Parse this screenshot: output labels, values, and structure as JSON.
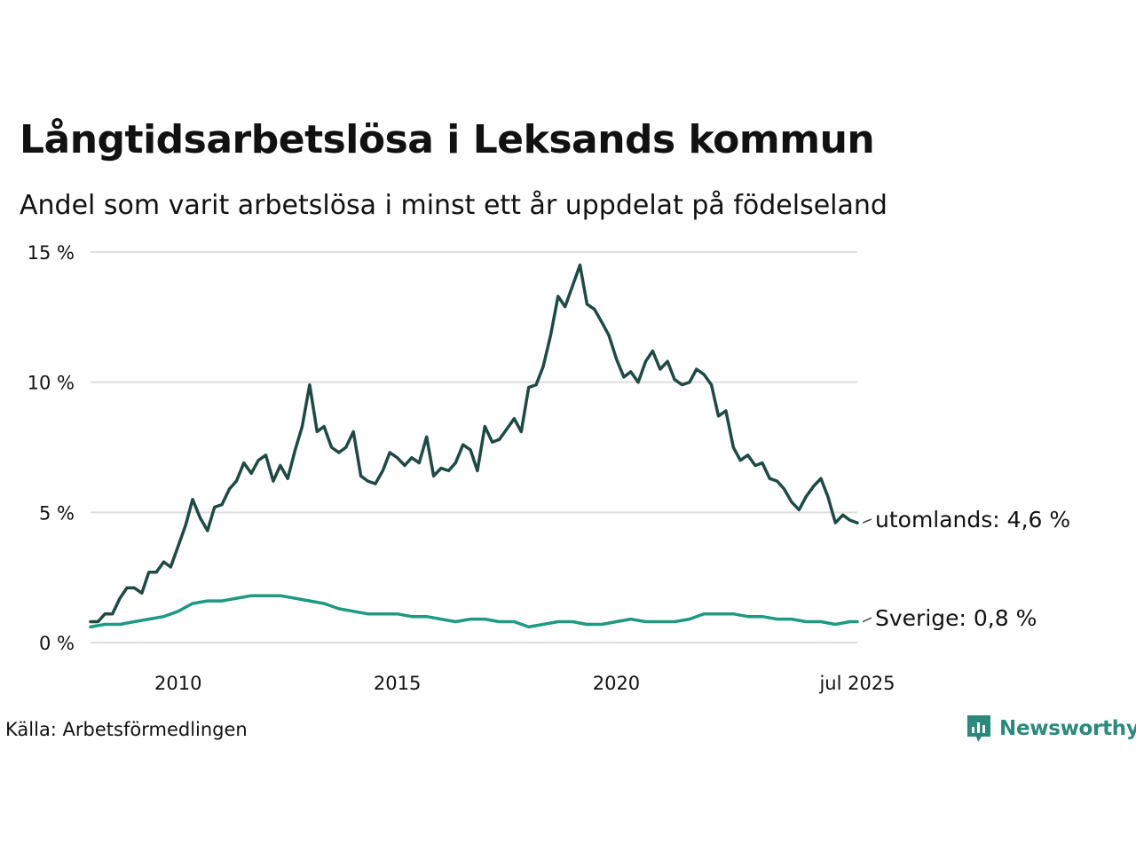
{
  "title": "Långtidsarbetslösa i Leksands kommun",
  "subtitle": "Andel som varit arbetslösa i minst ett år uppdelat på födelseland",
  "source": "Källa: Arbetsförmedlingen",
  "brand": "Newsworthy",
  "colors": {
    "utomlands": "#1f4a44",
    "sverige": "#1e9984",
    "grid": "#dddddd",
    "brand": "#2b8a7b"
  },
  "chart_data": {
    "type": "line",
    "title": "Långtidsarbetslösa i Leksands kommun",
    "subtitle": "Andel som varit arbetslösa i minst ett år uppdelat på födelseland",
    "ylim": [
      0,
      15
    ],
    "xlim": [
      2008.0,
      2025.5
    ],
    "y_ticks": [
      {
        "value": 0,
        "label": "0 %"
      },
      {
        "value": 5,
        "label": "5 %"
      },
      {
        "value": 10,
        "label": "10 %"
      },
      {
        "value": 15,
        "label": "15 %"
      }
    ],
    "x_ticks": [
      {
        "value": 2010,
        "label": "2010"
      },
      {
        "value": 2015,
        "label": "2015"
      },
      {
        "value": 2020,
        "label": "2020"
      },
      {
        "value": 2025.5,
        "label": "jul 2025"
      }
    ],
    "grid": true,
    "legend": "end-labels",
    "series": [
      {
        "name": "utomlands",
        "end_label": "utomlands: 4,6 %",
        "color": "#1f4a44",
        "points": [
          [
            2008.0,
            0.8
          ],
          [
            2008.17,
            0.8
          ],
          [
            2008.33,
            1.1
          ],
          [
            2008.5,
            1.1
          ],
          [
            2008.67,
            1.7
          ],
          [
            2008.83,
            2.1
          ],
          [
            2009.0,
            2.1
          ],
          [
            2009.17,
            1.9
          ],
          [
            2009.33,
            2.7
          ],
          [
            2009.5,
            2.7
          ],
          [
            2009.67,
            3.1
          ],
          [
            2009.83,
            2.9
          ],
          [
            2010.0,
            3.7
          ],
          [
            2010.17,
            4.5
          ],
          [
            2010.33,
            5.5
          ],
          [
            2010.5,
            4.8
          ],
          [
            2010.67,
            4.3
          ],
          [
            2010.83,
            5.2
          ],
          [
            2011.0,
            5.3
          ],
          [
            2011.17,
            5.9
          ],
          [
            2011.33,
            6.2
          ],
          [
            2011.5,
            6.9
          ],
          [
            2011.67,
            6.5
          ],
          [
            2011.83,
            7.0
          ],
          [
            2012.0,
            7.2
          ],
          [
            2012.17,
            6.2
          ],
          [
            2012.33,
            6.8
          ],
          [
            2012.5,
            6.3
          ],
          [
            2012.67,
            7.4
          ],
          [
            2012.83,
            8.3
          ],
          [
            2013.0,
            9.9
          ],
          [
            2013.17,
            8.1
          ],
          [
            2013.33,
            8.3
          ],
          [
            2013.5,
            7.5
          ],
          [
            2013.67,
            7.3
          ],
          [
            2013.83,
            7.5
          ],
          [
            2014.0,
            8.1
          ],
          [
            2014.17,
            6.4
          ],
          [
            2014.33,
            6.2
          ],
          [
            2014.5,
            6.1
          ],
          [
            2014.67,
            6.6
          ],
          [
            2014.83,
            7.3
          ],
          [
            2015.0,
            7.1
          ],
          [
            2015.17,
            6.8
          ],
          [
            2015.33,
            7.1
          ],
          [
            2015.5,
            6.9
          ],
          [
            2015.67,
            7.9
          ],
          [
            2015.83,
            6.4
          ],
          [
            2016.0,
            6.7
          ],
          [
            2016.17,
            6.6
          ],
          [
            2016.33,
            6.9
          ],
          [
            2016.5,
            7.6
          ],
          [
            2016.67,
            7.4
          ],
          [
            2016.83,
            6.6
          ],
          [
            2017.0,
            8.3
          ],
          [
            2017.17,
            7.7
          ],
          [
            2017.33,
            7.8
          ],
          [
            2017.5,
            8.2
          ],
          [
            2017.67,
            8.6
          ],
          [
            2017.83,
            8.1
          ],
          [
            2018.0,
            9.8
          ],
          [
            2018.17,
            9.9
          ],
          [
            2018.33,
            10.6
          ],
          [
            2018.5,
            11.8
          ],
          [
            2018.67,
            13.3
          ],
          [
            2018.83,
            12.9
          ],
          [
            2019.0,
            13.7
          ],
          [
            2019.17,
            14.5
          ],
          [
            2019.33,
            13.0
          ],
          [
            2019.5,
            12.8
          ],
          [
            2019.67,
            12.3
          ],
          [
            2019.83,
            11.8
          ],
          [
            2020.0,
            10.9
          ],
          [
            2020.17,
            10.2
          ],
          [
            2020.33,
            10.4
          ],
          [
            2020.5,
            10.0
          ],
          [
            2020.67,
            10.8
          ],
          [
            2020.83,
            11.2
          ],
          [
            2021.0,
            10.5
          ],
          [
            2021.17,
            10.8
          ],
          [
            2021.33,
            10.1
          ],
          [
            2021.5,
            9.9
          ],
          [
            2021.67,
            10.0
          ],
          [
            2021.83,
            10.5
          ],
          [
            2022.0,
            10.3
          ],
          [
            2022.17,
            9.9
          ],
          [
            2022.33,
            8.7
          ],
          [
            2022.5,
            8.9
          ],
          [
            2022.67,
            7.5
          ],
          [
            2022.83,
            7.0
          ],
          [
            2023.0,
            7.2
          ],
          [
            2023.17,
            6.8
          ],
          [
            2023.33,
            6.9
          ],
          [
            2023.5,
            6.3
          ],
          [
            2023.67,
            6.2
          ],
          [
            2023.83,
            5.9
          ],
          [
            2024.0,
            5.4
          ],
          [
            2024.17,
            5.1
          ],
          [
            2024.33,
            5.6
          ],
          [
            2024.5,
            6.0
          ],
          [
            2024.67,
            6.3
          ],
          [
            2024.83,
            5.6
          ],
          [
            2025.0,
            4.6
          ],
          [
            2025.17,
            4.9
          ],
          [
            2025.33,
            4.7
          ],
          [
            2025.5,
            4.6
          ]
        ]
      },
      {
        "name": "Sverige",
        "end_label": "Sverige: 0,8 %",
        "color": "#1e9984",
        "points": [
          [
            2008.0,
            0.6
          ],
          [
            2008.33,
            0.7
          ],
          [
            2008.67,
            0.7
          ],
          [
            2009.0,
            0.8
          ],
          [
            2009.33,
            0.9
          ],
          [
            2009.67,
            1.0
          ],
          [
            2010.0,
            1.2
          ],
          [
            2010.33,
            1.5
          ],
          [
            2010.67,
            1.6
          ],
          [
            2011.0,
            1.6
          ],
          [
            2011.33,
            1.7
          ],
          [
            2011.67,
            1.8
          ],
          [
            2012.0,
            1.8
          ],
          [
            2012.33,
            1.8
          ],
          [
            2012.67,
            1.7
          ],
          [
            2013.0,
            1.6
          ],
          [
            2013.33,
            1.5
          ],
          [
            2013.67,
            1.3
          ],
          [
            2014.0,
            1.2
          ],
          [
            2014.33,
            1.1
          ],
          [
            2014.67,
            1.1
          ],
          [
            2015.0,
            1.1
          ],
          [
            2015.33,
            1.0
          ],
          [
            2015.67,
            1.0
          ],
          [
            2016.0,
            0.9
          ],
          [
            2016.33,
            0.8
          ],
          [
            2016.67,
            0.9
          ],
          [
            2017.0,
            0.9
          ],
          [
            2017.33,
            0.8
          ],
          [
            2017.67,
            0.8
          ],
          [
            2018.0,
            0.6
          ],
          [
            2018.33,
            0.7
          ],
          [
            2018.67,
            0.8
          ],
          [
            2019.0,
            0.8
          ],
          [
            2019.33,
            0.7
          ],
          [
            2019.67,
            0.7
          ],
          [
            2020.0,
            0.8
          ],
          [
            2020.33,
            0.9
          ],
          [
            2020.67,
            0.8
          ],
          [
            2021.0,
            0.8
          ],
          [
            2021.33,
            0.8
          ],
          [
            2021.67,
            0.9
          ],
          [
            2022.0,
            1.1
          ],
          [
            2022.33,
            1.1
          ],
          [
            2022.67,
            1.1
          ],
          [
            2023.0,
            1.0
          ],
          [
            2023.33,
            1.0
          ],
          [
            2023.67,
            0.9
          ],
          [
            2024.0,
            0.9
          ],
          [
            2024.33,
            0.8
          ],
          [
            2024.67,
            0.8
          ],
          [
            2025.0,
            0.7
          ],
          [
            2025.33,
            0.8
          ],
          [
            2025.5,
            0.8
          ]
        ]
      }
    ]
  }
}
